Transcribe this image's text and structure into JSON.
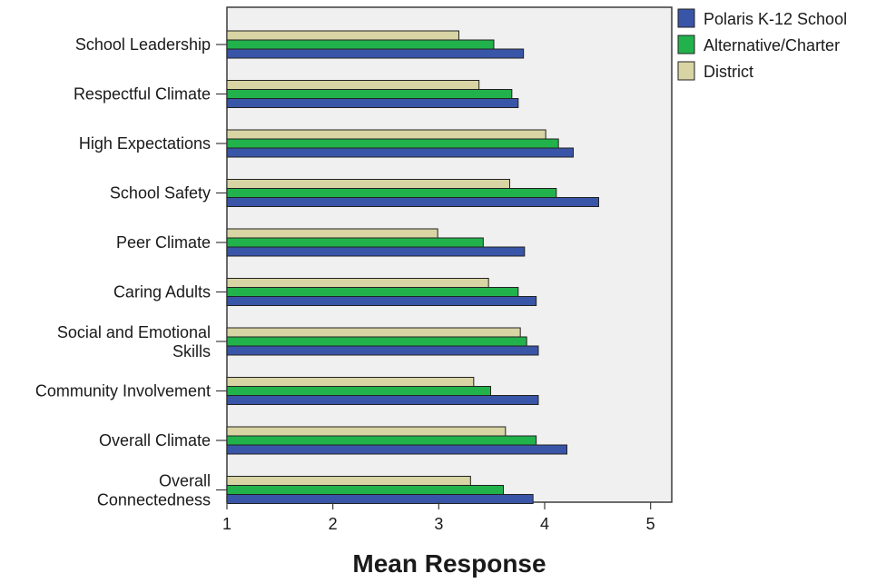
{
  "chart_data": {
    "type": "bar",
    "orientation": "horizontal",
    "title": "",
    "xlabel": "Mean Response",
    "ylabel": "",
    "xlim": [
      1,
      5.2
    ],
    "xticks": [
      "1",
      "2",
      "3",
      "4",
      "5"
    ],
    "grid": false,
    "legend_position": "top-right",
    "categories": [
      [
        "School Leadership"
      ],
      [
        "Respectful Climate"
      ],
      [
        "High Expectations"
      ],
      [
        "School Safety"
      ],
      [
        "Peer Climate"
      ],
      [
        "Caring Adults"
      ],
      [
        "Social and Emotional",
        "Skills"
      ],
      [
        "Community Involvement"
      ],
      [
        "Overall Climate"
      ],
      [
        "Overall",
        "Connectedness"
      ]
    ],
    "series": [
      {
        "name": "District",
        "color": "#d8d4a4",
        "values": [
          3.19,
          3.38,
          4.01,
          3.67,
          2.99,
          3.47,
          3.77,
          3.33,
          3.63,
          3.3
        ]
      },
      {
        "name": "Alternative/Charter",
        "color": "#22b24c",
        "values": [
          3.52,
          3.69,
          4.13,
          4.11,
          3.42,
          3.75,
          3.83,
          3.49,
          3.92,
          3.61
        ]
      },
      {
        "name": "Polaris K-12 School",
        "color": "#3955a8",
        "values": [
          3.8,
          3.75,
          4.27,
          4.51,
          3.81,
          3.92,
          3.94,
          3.94,
          4.21,
          3.89
        ]
      }
    ],
    "legend_order": [
      "Polaris K-12 School",
      "Alternative/Charter",
      "District"
    ]
  }
}
